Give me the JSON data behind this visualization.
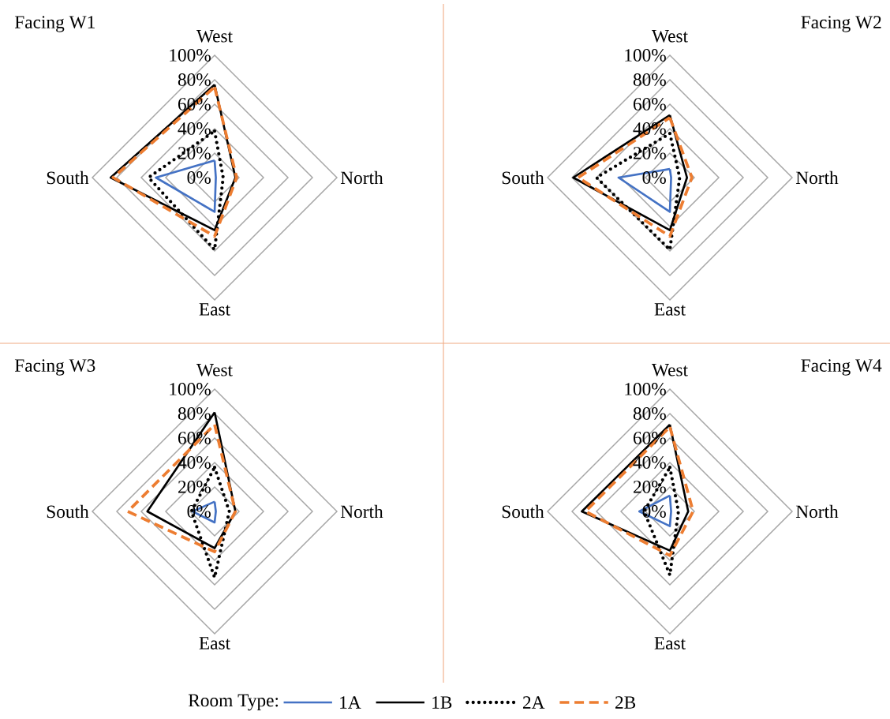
{
  "chart_data": [
    {
      "type": "radar",
      "title": "Facing W1",
      "categories": [
        "West",
        "North",
        "East",
        "South"
      ],
      "ylim": [
        0,
        100
      ],
      "yticks": [
        {
          "value": 0,
          "label": "0%"
        },
        {
          "value": 20,
          "label": "20%"
        },
        {
          "value": 40,
          "label": "40%"
        },
        {
          "value": 60,
          "label": "60%"
        },
        {
          "value": 80,
          "label": "80%"
        },
        {
          "value": 100,
          "label": "100%"
        }
      ],
      "grid": true,
      "marker": "none",
      "series": [
        {
          "color": "#4472c4",
          "line_style": "solid",
          "values": [
            14,
            1,
            28,
            48
          ]
        },
        {
          "color": "#000000",
          "line_style": "solid",
          "values": [
            76,
            17,
            43,
            85
          ]
        },
        {
          "color": "#000000",
          "line_style": "dotted",
          "values": [
            38,
            7,
            59,
            54
          ]
        },
        {
          "color": "#ed7d31",
          "line_style": "dashed",
          "values": [
            74,
            18,
            48,
            83
          ]
        }
      ]
    },
    {
      "type": "radar",
      "title": "Facing W2",
      "categories": [
        "West",
        "North",
        "East",
        "South"
      ],
      "ylim": [
        0,
        100
      ],
      "yticks": [
        {
          "value": 0,
          "label": "0%"
        },
        {
          "value": 20,
          "label": "20%"
        },
        {
          "value": 40,
          "label": "40%"
        },
        {
          "value": 60,
          "label": "60%"
        },
        {
          "value": 80,
          "label": "80%"
        },
        {
          "value": 100,
          "label": "100%"
        }
      ],
      "grid": true,
      "marker": "none",
      "series": [
        {
          "color": "#4472c4",
          "line_style": "solid",
          "values": [
            7,
            1,
            28,
            42
          ]
        },
        {
          "color": "#000000",
          "line_style": "solid",
          "values": [
            51,
            14,
            43,
            79
          ]
        },
        {
          "color": "#000000",
          "line_style": "dotted",
          "values": [
            36,
            8,
            59,
            60
          ]
        },
        {
          "color": "#ed7d31",
          "line_style": "dashed",
          "values": [
            49,
            18,
            48,
            75
          ]
        }
      ]
    },
    {
      "type": "radar",
      "title": "Facing W3",
      "categories": [
        "West",
        "North",
        "East",
        "South"
      ],
      "ylim": [
        0,
        100
      ],
      "yticks": [
        {
          "value": 0,
          "label": "0%"
        },
        {
          "value": 20,
          "label": "20%"
        },
        {
          "value": 40,
          "label": "40%"
        },
        {
          "value": 60,
          "label": "60%"
        },
        {
          "value": 80,
          "label": "80%"
        },
        {
          "value": 100,
          "label": "100%"
        }
      ],
      "grid": true,
      "marker": "none",
      "series": [
        {
          "color": "#4472c4",
          "line_style": "solid",
          "values": [
            8,
            1,
            9,
            18
          ]
        },
        {
          "color": "#000000",
          "line_style": "solid",
          "values": [
            81,
            17,
            30,
            55
          ]
        },
        {
          "color": "#000000",
          "line_style": "dotted",
          "values": [
            36,
            12,
            54,
            19
          ]
        },
        {
          "color": "#ed7d31",
          "line_style": "dashed",
          "values": [
            71,
            17,
            33,
            71
          ]
        }
      ]
    },
    {
      "type": "radar",
      "title": "Facing W4",
      "categories": [
        "West",
        "North",
        "East",
        "South"
      ],
      "ylim": [
        0,
        100
      ],
      "yticks": [
        {
          "value": 0,
          "label": "0%"
        },
        {
          "value": 20,
          "label": "20%"
        },
        {
          "value": 40,
          "label": "40%"
        },
        {
          "value": 60,
          "label": "60%"
        },
        {
          "value": 80,
          "label": "80%"
        },
        {
          "value": 100,
          "label": "100%"
        }
      ],
      "grid": true,
      "marker": "none",
      "legend": "bottom",
      "legend_title": "Room Type:",
      "series": [
        {
          "name": "1A",
          "color": "#4472c4",
          "line_style": "solid",
          "values": [
            13,
            1,
            12,
            25
          ]
        },
        {
          "name": "1B",
          "color": "#000000",
          "line_style": "solid",
          "values": [
            71,
            15,
            32,
            72
          ]
        },
        {
          "name": "2A",
          "color": "#000000",
          "line_style": "dotted",
          "values": [
            36,
            7,
            52,
            21
          ]
        },
        {
          "name": "2B",
          "color": "#ed7d31",
          "line_style": "dashed",
          "values": [
            69,
            19,
            36,
            69
          ]
        }
      ]
    }
  ]
}
